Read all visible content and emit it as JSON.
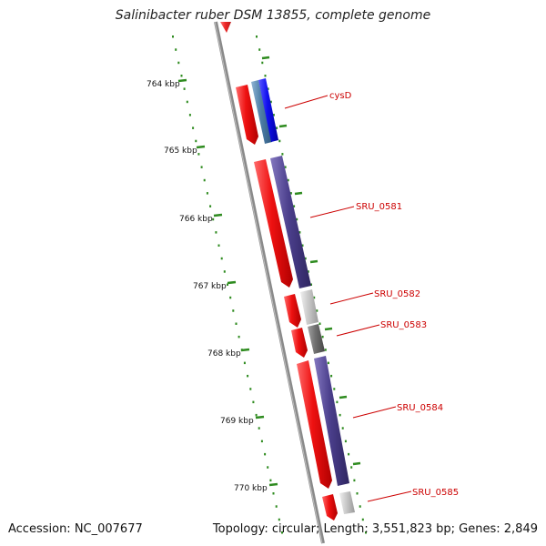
{
  "title": "Salinibacter ruber DSM 13855, complete genome",
  "accession": "Accession: NC_007677",
  "summary": "Topology: circular; Length: 3,551,823 bp; Genes: 2,849",
  "colors": {
    "backbone": "#8a8a8a",
    "tick_green": "#2e8b1f",
    "feature_red": "#ee1111",
    "label_red": "#cc0000",
    "cds_purple": "#4b3f8c",
    "cds_blue": "#1010ee",
    "cds_steel": "#4f7fa8",
    "cds_lightgray": "#c8c8c8",
    "cds_darkgray": "#707070"
  },
  "scale_labels": [
    "764 kbp",
    "765 kbp",
    "766 kbp",
    "767 kbp",
    "768 kbp",
    "769 kbp",
    "770 kbp"
  ],
  "gene_labels": [
    "cysD",
    "SRU_0581",
    "SRU_0582",
    "SRU_0583",
    "SRU_0584",
    "SRU_0585"
  ]
}
